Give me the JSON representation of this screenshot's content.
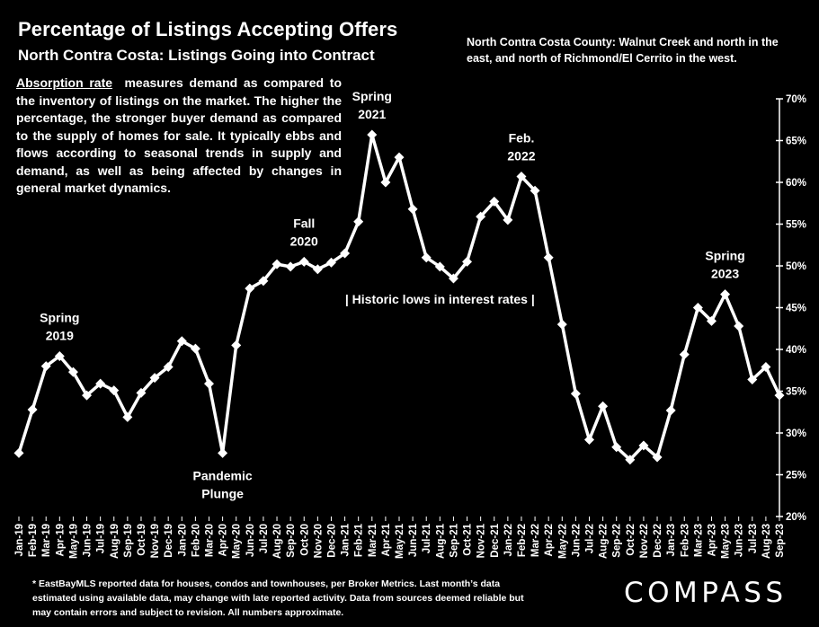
{
  "header": {
    "title": "Percentage of Listings Accepting Offers",
    "subtitle": "North Contra Costa: Listings Going into Contract",
    "region_note": "North Contra Costa County: Walnut Creek and north in the east, and north of Richmond/El Cerrito in the west."
  },
  "description": {
    "term": "Absorption rate",
    "text": "measures demand as compared to the inventory of listings on the market. The higher the percentage, the stronger buyer demand as compared to the supply of homes for sale. It typically ebbs and flows according to seasonal trends in supply and demand, as well as being affected by changes in general market dynamics."
  },
  "footnote": "* EastBayMLS reported data for houses, condos and townhouses, per Broker Metrics. Last month’s data estimated using available data, may change with late reported activity. Data from sources deemed reliable but may contain errors and subject to revision. All numbers approximate.",
  "logo": "COMPASS",
  "chart_data": {
    "type": "line",
    "categories": [
      "Jan-19",
      "Feb-19",
      "Mar-19",
      "Apr-19",
      "May-19",
      "Jun-19",
      "Jul-19",
      "Aug-19",
      "Sep-19",
      "Oct-19",
      "Nov-19",
      "Dec-19",
      "Jan-20",
      "Feb-20",
      "Mar-20",
      "Apr-20",
      "May-20",
      "Jun-20",
      "Jul-20",
      "Aug-20",
      "Sep-20",
      "Oct-20",
      "Nov-20",
      "Dec-20",
      "Jan-21",
      "Feb-21",
      "Mar-21",
      "Apr-21",
      "May-21",
      "Jun-21",
      "Jul-21",
      "Aug-21",
      "Sep-21",
      "Oct-21",
      "Nov-21",
      "Dec-21",
      "Jan-22",
      "Feb-22",
      "Mar-22",
      "Apr-22",
      "May-22",
      "Jun-22",
      "Jul-22",
      "Aug-22",
      "Sep-22",
      "Oct-22",
      "Nov-22",
      "Dec-22",
      "Jan-23",
      "Feb-23",
      "Mar-23",
      "Apr-23",
      "May-23",
      "Jun-23",
      "Jul-23",
      "Aug-23",
      "Sep-23"
    ],
    "values": [
      27.6,
      32.8,
      38.0,
      39.2,
      37.3,
      34.5,
      35.9,
      35.1,
      31.9,
      34.8,
      36.6,
      37.9,
      41.0,
      40.1,
      35.9,
      27.6,
      40.5,
      47.3,
      48.2,
      50.2,
      49.9,
      50.5,
      49.6,
      50.4,
      51.5,
      55.3,
      65.7,
      60.0,
      63.0,
      56.8,
      51.0,
      49.9,
      48.5,
      50.5,
      55.9,
      57.7,
      55.5,
      60.7,
      59.0,
      51.0,
      43.0,
      34.7,
      29.2,
      33.2,
      28.3,
      26.8,
      28.5,
      27.1,
      32.7,
      39.4,
      45.0,
      43.4,
      46.6,
      42.8,
      36.4,
      37.9,
      34.5
    ],
    "y_ticks": [
      "20%",
      "25%",
      "30%",
      "35%",
      "40%",
      "45%",
      "50%",
      "55%",
      "60%",
      "65%",
      "70%"
    ],
    "ylim": [
      20,
      70
    ],
    "annotations": [
      {
        "lines": [
          "Spring",
          "2019"
        ],
        "index": 3
      },
      {
        "lines": [
          "Pandemic",
          "Plunge"
        ],
        "index": 15
      },
      {
        "lines": [
          "Fall",
          "2020"
        ],
        "index": 21
      },
      {
        "lines": [
          "Spring",
          "2021"
        ],
        "index": 26
      },
      {
        "lines": [
          "Feb.",
          "2022"
        ],
        "index": 37
      },
      {
        "lines": [
          "Spring",
          "2023"
        ],
        "index": 52
      }
    ],
    "interest_note": "| Historic lows in interest rates |",
    "line_color": "#ffffff",
    "grid": false
  }
}
